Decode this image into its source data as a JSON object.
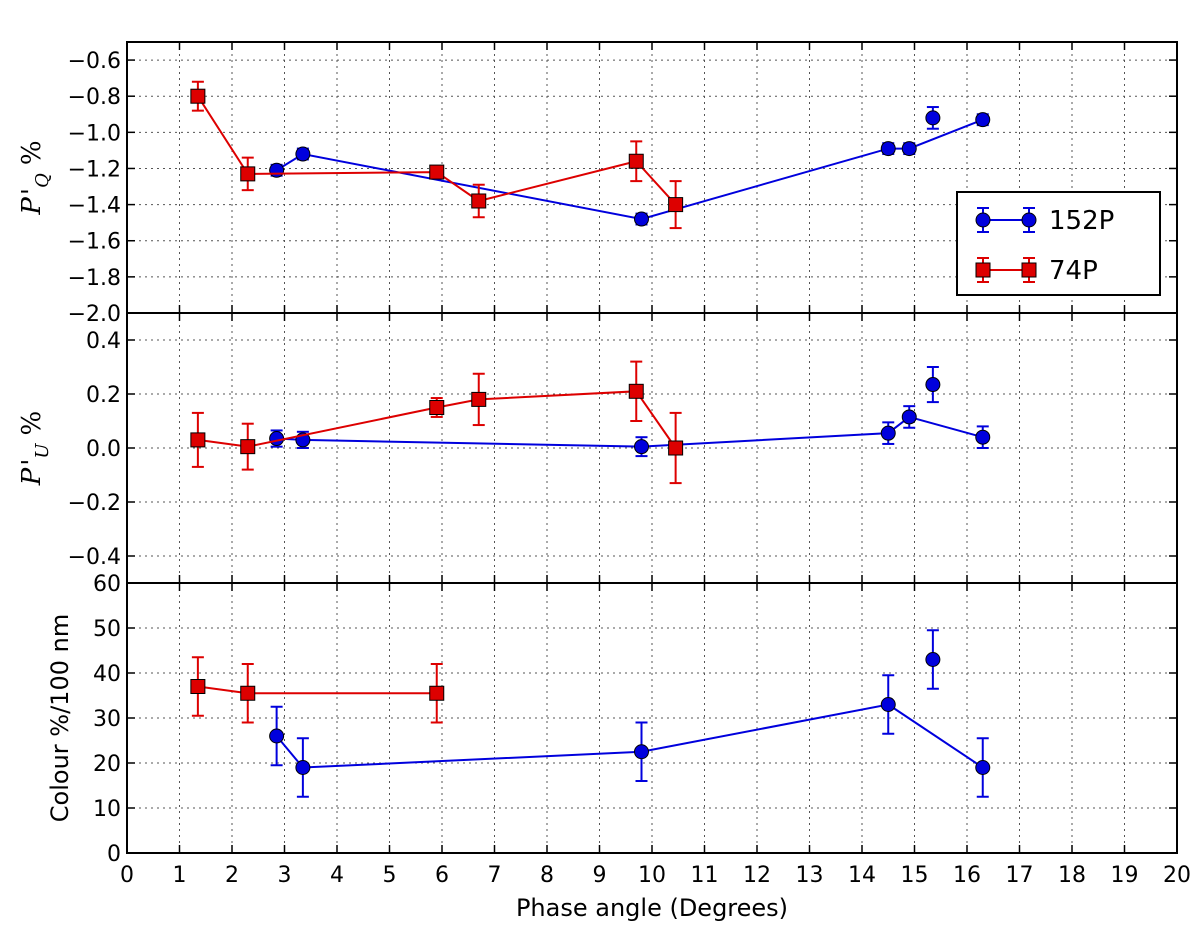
{
  "chart_data": {
    "type": "scatter",
    "xlabel": "Phase angle (Degrees)",
    "xlim": [
      0,
      20
    ],
    "xticks": [
      0,
      1,
      2,
      3,
      4,
      5,
      6,
      7,
      8,
      9,
      10,
      11,
      12,
      13,
      14,
      15,
      16,
      17,
      18,
      19,
      20
    ],
    "grid": true,
    "legend": {
      "placement": "right",
      "entries": [
        {
          "name": "152P",
          "color": "#0000dd",
          "marker": "circle"
        },
        {
          "name": "74P",
          "color": "#dd0000",
          "marker": "square"
        }
      ]
    },
    "panels": [
      {
        "id": "pq",
        "ylabel_main": "P",
        "ylabel_prime": "'",
        "ylabel_sub": "Q",
        "ylabel_unit": "%",
        "ylim": [
          -2.0,
          -0.5
        ],
        "yticks": [
          -2.0,
          -1.8,
          -1.6,
          -1.4,
          -1.2,
          -1.0,
          -0.8,
          -0.6
        ],
        "ytick_labels": [
          "−2.0",
          "−1.8",
          "−1.6",
          "−1.4",
          "−1.2",
          "−1.0",
          "−0.8",
          "−0.6"
        ],
        "series": [
          {
            "name": "152P",
            "color": "#0000dd",
            "marker": "circle",
            "points": [
              {
                "x": 2.85,
                "y": -1.21,
                "err": 0.03,
                "line": true
              },
              {
                "x": 3.35,
                "y": -1.12,
                "err": 0.03,
                "line": true
              },
              {
                "x": 9.8,
                "y": -1.48,
                "err": 0.03,
                "line": true
              },
              {
                "x": 14.5,
                "y": -1.09,
                "err": 0.03,
                "line": true
              },
              {
                "x": 14.9,
                "y": -1.09,
                "err": 0.03,
                "line": true
              },
              {
                "x": 15.35,
                "y": -0.92,
                "err": 0.06,
                "line": false
              },
              {
                "x": 16.3,
                "y": -0.93,
                "err": 0.03,
                "line": true
              }
            ]
          },
          {
            "name": "74P",
            "color": "#dd0000",
            "marker": "square",
            "points": [
              {
                "x": 1.35,
                "y": -0.8,
                "err": 0.08,
                "line": true
              },
              {
                "x": 2.3,
                "y": -1.23,
                "err": 0.09,
                "line": true
              },
              {
                "x": 5.9,
                "y": -1.22,
                "err": 0.03,
                "line": true
              },
              {
                "x": 6.7,
                "y": -1.38,
                "err": 0.09,
                "line": true
              },
              {
                "x": 9.7,
                "y": -1.16,
                "err": 0.11,
                "line": true
              },
              {
                "x": 10.45,
                "y": -1.4,
                "err": 0.13,
                "line": true
              }
            ]
          }
        ]
      },
      {
        "id": "pu",
        "ylabel_main": "P",
        "ylabel_prime": "'",
        "ylabel_sub": "U",
        "ylabel_unit": "%",
        "ylim": [
          -0.5,
          0.5
        ],
        "yticks": [
          -0.4,
          -0.2,
          0.0,
          0.2,
          0.4
        ],
        "ytick_labels": [
          "−0.4",
          "−0.2",
          "0.0",
          "0.2",
          "0.4"
        ],
        "series": [
          {
            "name": "152P",
            "color": "#0000dd",
            "marker": "circle",
            "points": [
              {
                "x": 2.85,
                "y": 0.035,
                "err": 0.03,
                "line": true
              },
              {
                "x": 3.35,
                "y": 0.03,
                "err": 0.03,
                "line": true
              },
              {
                "x": 9.8,
                "y": 0.005,
                "err": 0.035,
                "line": true
              },
              {
                "x": 14.5,
                "y": 0.055,
                "err": 0.04,
                "line": true
              },
              {
                "x": 14.9,
                "y": 0.115,
                "err": 0.04,
                "line": true
              },
              {
                "x": 15.35,
                "y": 0.235,
                "err": 0.065,
                "line": false
              },
              {
                "x": 16.3,
                "y": 0.04,
                "err": 0.04,
                "line": true
              }
            ]
          },
          {
            "name": "74P",
            "color": "#dd0000",
            "marker": "square",
            "points": [
              {
                "x": 1.35,
                "y": 0.03,
                "err": 0.1,
                "line": true
              },
              {
                "x": 2.3,
                "y": 0.005,
                "err": 0.085,
                "line": true
              },
              {
                "x": 5.9,
                "y": 0.15,
                "err": 0.035,
                "line": true
              },
              {
                "x": 6.7,
                "y": 0.18,
                "err": 0.095,
                "line": true
              },
              {
                "x": 9.7,
                "y": 0.21,
                "err": 0.11,
                "line": true
              },
              {
                "x": 10.45,
                "y": 0.0,
                "err": 0.13,
                "line": true
              }
            ]
          }
        ]
      },
      {
        "id": "colour",
        "ylabel_main": "Colour %/100 nm",
        "ylim": [
          0,
          60
        ],
        "yticks": [
          0,
          10,
          20,
          30,
          40,
          50,
          60
        ],
        "ytick_labels": [
          "0",
          "10",
          "20",
          "30",
          "40",
          "50",
          "60"
        ],
        "series": [
          {
            "name": "152P",
            "color": "#0000dd",
            "marker": "circle",
            "points": [
              {
                "x": 2.85,
                "y": 26,
                "err": 6.5,
                "line": true
              },
              {
                "x": 3.35,
                "y": 19,
                "err": 6.5,
                "line": true
              },
              {
                "x": 9.8,
                "y": 22.5,
                "err": 6.5,
                "line": true
              },
              {
                "x": 14.5,
                "y": 33,
                "err": 6.5,
                "line": true
              },
              {
                "x": 15.35,
                "y": 43,
                "err": 6.5,
                "line": false
              },
              {
                "x": 16.3,
                "y": 19,
                "err": 6.5,
                "line": true
              }
            ]
          },
          {
            "name": "74P",
            "color": "#dd0000",
            "marker": "square",
            "points": [
              {
                "x": 1.35,
                "y": 37,
                "err": 6.5,
                "line": true
              },
              {
                "x": 2.3,
                "y": 35.5,
                "err": 6.5,
                "line": true
              },
              {
                "x": 5.9,
                "y": 35.5,
                "err": 6.5,
                "line": true
              }
            ]
          }
        ]
      }
    ]
  }
}
